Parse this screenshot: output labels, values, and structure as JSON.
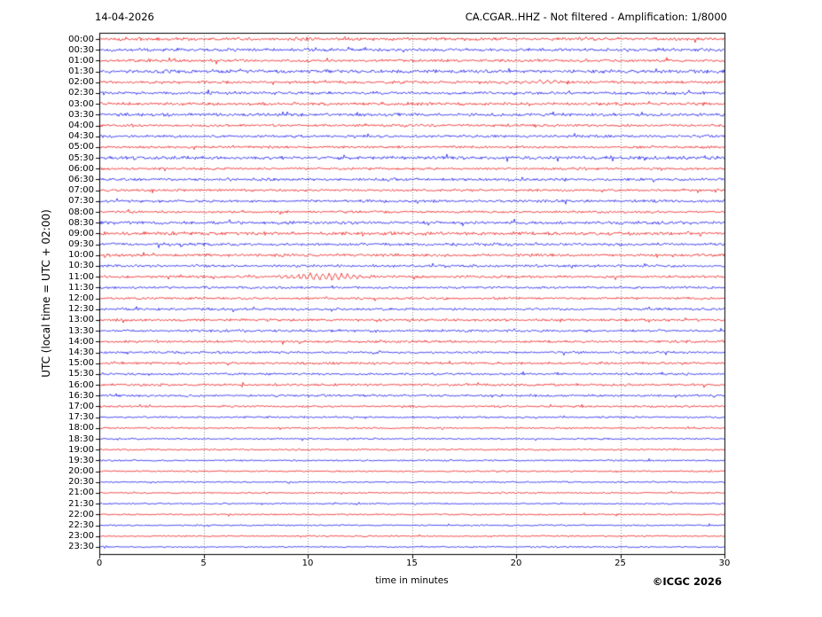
{
  "header": {
    "date_label": "14-04-2026",
    "channel_label": "CA.CGAR..HHZ - Not filtered - Amplification: 1/8000"
  },
  "footer": {
    "credit": "©ICGC 2026"
  },
  "chart_data": {
    "type": "line",
    "subtype": "helicorder-seismogram",
    "title_left": "14-04-2026",
    "title_right": "CA.CGAR..HHZ - Not filtered - Amplification: 1/8000",
    "xlabel": "time in minutes",
    "ylabel": "UTC (local time = UTC + 02:00)",
    "x_range": [
      0,
      30
    ],
    "x_ticks": [
      0,
      5,
      10,
      15,
      20,
      25,
      30
    ],
    "grid_minutes": [
      5,
      10,
      15,
      20,
      25
    ],
    "grid": true,
    "legend": "none",
    "row_duration_min": 30,
    "colors": {
      "red": "#ee0000",
      "blue": "#0000ee",
      "grid": "#888888",
      "frame": "#000000",
      "background": "#ffffff"
    },
    "rows": [
      {
        "t": "00:00",
        "c": "red",
        "a": 2.1
      },
      {
        "t": "00:30",
        "c": "blue",
        "a": 2.0
      },
      {
        "t": "01:00",
        "c": "red",
        "a": 1.8
      },
      {
        "t": "01:30",
        "c": "blue",
        "a": 2.2
      },
      {
        "t": "02:00",
        "c": "red",
        "a": 1.8
      },
      {
        "t": "02:30",
        "c": "blue",
        "a": 2.0
      },
      {
        "t": "03:00",
        "c": "red",
        "a": 2.0
      },
      {
        "t": "03:30",
        "c": "blue",
        "a": 2.0
      },
      {
        "t": "04:00",
        "c": "red",
        "a": 1.7
      },
      {
        "t": "04:30",
        "c": "blue",
        "a": 1.7
      },
      {
        "t": "05:00",
        "c": "red",
        "a": 1.6
      },
      {
        "t": "05:30",
        "c": "blue",
        "a": 2.2
      },
      {
        "t": "06:00",
        "c": "red",
        "a": 1.6
      },
      {
        "t": "06:30",
        "c": "blue",
        "a": 1.9
      },
      {
        "t": "07:00",
        "c": "red",
        "a": 1.6
      },
      {
        "t": "07:30",
        "c": "blue",
        "a": 1.7
      },
      {
        "t": "08:00",
        "c": "red",
        "a": 1.6
      },
      {
        "t": "08:30",
        "c": "blue",
        "a": 2.0
      },
      {
        "t": "09:00",
        "c": "red",
        "a": 2.2
      },
      {
        "t": "09:30",
        "c": "blue",
        "a": 1.9
      },
      {
        "t": "10:00",
        "c": "red",
        "a": 1.8
      },
      {
        "t": "10:30",
        "c": "blue",
        "a": 1.7
      },
      {
        "t": "11:00",
        "c": "red",
        "a": 1.7
      },
      {
        "t": "11:30",
        "c": "blue",
        "a": 1.5
      },
      {
        "t": "12:00",
        "c": "red",
        "a": 1.6
      },
      {
        "t": "12:30",
        "c": "blue",
        "a": 1.6
      },
      {
        "t": "13:00",
        "c": "red",
        "a": 1.6
      },
      {
        "t": "13:30",
        "c": "blue",
        "a": 1.6
      },
      {
        "t": "14:00",
        "c": "red",
        "a": 1.6
      },
      {
        "t": "14:30",
        "c": "blue",
        "a": 1.5
      },
      {
        "t": "15:00",
        "c": "red",
        "a": 1.6
      },
      {
        "t": "15:30",
        "c": "blue",
        "a": 1.5
      },
      {
        "t": "16:00",
        "c": "red",
        "a": 1.6
      },
      {
        "t": "16:30",
        "c": "blue",
        "a": 1.5
      },
      {
        "t": "17:00",
        "c": "red",
        "a": 1.3
      },
      {
        "t": "17:30",
        "c": "blue",
        "a": 1.2
      },
      {
        "t": "18:00",
        "c": "red",
        "a": 1.2
      },
      {
        "t": "18:30",
        "c": "blue",
        "a": 1.1
      },
      {
        "t": "19:00",
        "c": "red",
        "a": 1.2
      },
      {
        "t": "19:30",
        "c": "blue",
        "a": 1.1
      },
      {
        "t": "20:00",
        "c": "red",
        "a": 1.0
      },
      {
        "t": "20:30",
        "c": "blue",
        "a": 1.0
      },
      {
        "t": "21:00",
        "c": "red",
        "a": 1.0
      },
      {
        "t": "21:30",
        "c": "blue",
        "a": 1.0
      },
      {
        "t": "22:00",
        "c": "red",
        "a": 1.0
      },
      {
        "t": "22:30",
        "c": "blue",
        "a": 1.0
      },
      {
        "t": "23:00",
        "c": "red",
        "a": 1.0
      },
      {
        "t": "23:30",
        "c": "blue",
        "a": 1.0
      }
    ],
    "events": [
      {
        "row": "02:00",
        "start": 20.2,
        "end": 22.3,
        "amp": 2.0,
        "period": 0.35,
        "type": "oscillation"
      },
      {
        "row": "07:00",
        "start": 2.4,
        "end": 2.65,
        "amp": 4.0,
        "period": 0.12,
        "type": "spike"
      },
      {
        "row": "11:00",
        "start": 8.1,
        "end": 13.5,
        "amp": 3.0,
        "period": 0.3,
        "type": "oscillation"
      }
    ]
  }
}
